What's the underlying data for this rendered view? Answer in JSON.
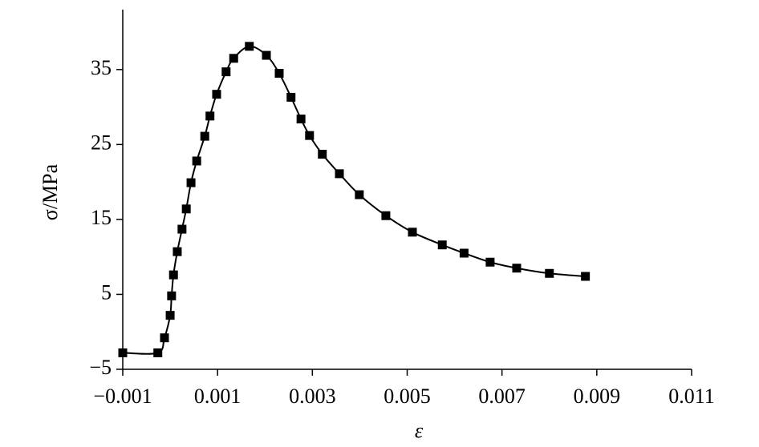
{
  "chart_data": {
    "type": "line",
    "x_label": "ε",
    "y_label": "σ/MPa",
    "x": [
      -0.001,
      -0.00026,
      -0.00012,
      0.0,
      3e-05,
      7e-05,
      0.00015,
      0.00025,
      0.00034,
      0.00044,
      0.00056,
      0.00073,
      0.00084,
      0.00098,
      0.00118,
      0.00134,
      0.00167,
      0.00203,
      0.0023,
      0.00255,
      0.00276,
      0.00294,
      0.00321,
      0.00357,
      0.00399,
      0.00455,
      0.00511,
      0.00574,
      0.0062,
      0.00675,
      0.00731,
      0.008,
      0.00876
    ],
    "series": [
      {
        "color": "#000000",
        "values": [
          -2.8,
          -2.8,
          -0.8,
          2.2,
          4.8,
          7.6,
          10.7,
          13.7,
          16.4,
          19.9,
          22.8,
          26.1,
          28.8,
          31.7,
          34.7,
          36.5,
          38.1,
          36.9,
          34.5,
          31.3,
          28.4,
          26.2,
          23.7,
          21.1,
          18.3,
          15.5,
          13.3,
          11.6,
          10.5,
          9.3,
          8.5,
          7.8,
          7.4
        ]
      }
    ],
    "xlim": [
      -0.001,
      0.011
    ],
    "xticks": [
      {
        "value": -0.001,
        "label": "−0.001"
      },
      0.001,
      0.003,
      0.005,
      0.007,
      0.009,
      0.011
    ],
    "ylim": [
      -5,
      43
    ],
    "yticks": [
      {
        "value": -5,
        "label": "−5"
      },
      5,
      15,
      25,
      35
    ],
    "marker": "square"
  }
}
